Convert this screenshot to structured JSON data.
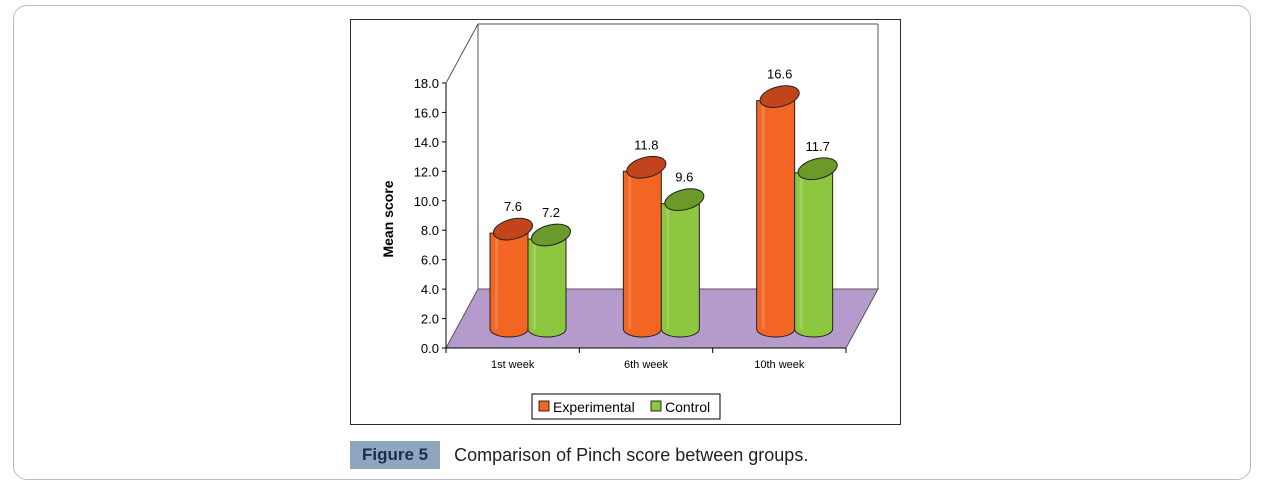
{
  "chart_data": {
    "type": "bar",
    "categories": [
      "1st week",
      "6th week",
      "10th week"
    ],
    "series": [
      {
        "name": "Experimental",
        "values": [
          7.6,
          11.8,
          16.6
        ],
        "color": "#f26522",
        "top_color": "#c1441a"
      },
      {
        "name": "Control",
        "values": [
          7.2,
          9.6,
          11.7
        ],
        "color": "#8dc63f",
        "top_color": "#6a9a2a"
      }
    ],
    "data_labels": [
      [
        "7.6",
        "11.8",
        "16.6"
      ],
      [
        "7.2",
        "9.6",
        "11.7"
      ]
    ],
    "ylabel": "Mean score",
    "ylim": [
      0,
      18
    ],
    "yticks": [
      "0.0",
      "2.0",
      "4.0",
      "6.0",
      "8.0",
      "10.0",
      "12.0",
      "14.0",
      "16.0",
      "18.0"
    ],
    "floor_color": "#b59bcc",
    "legend_placement": "bottom"
  },
  "caption": {
    "label": "Figure 5",
    "text": "Comparison of Pinch score between groups."
  }
}
